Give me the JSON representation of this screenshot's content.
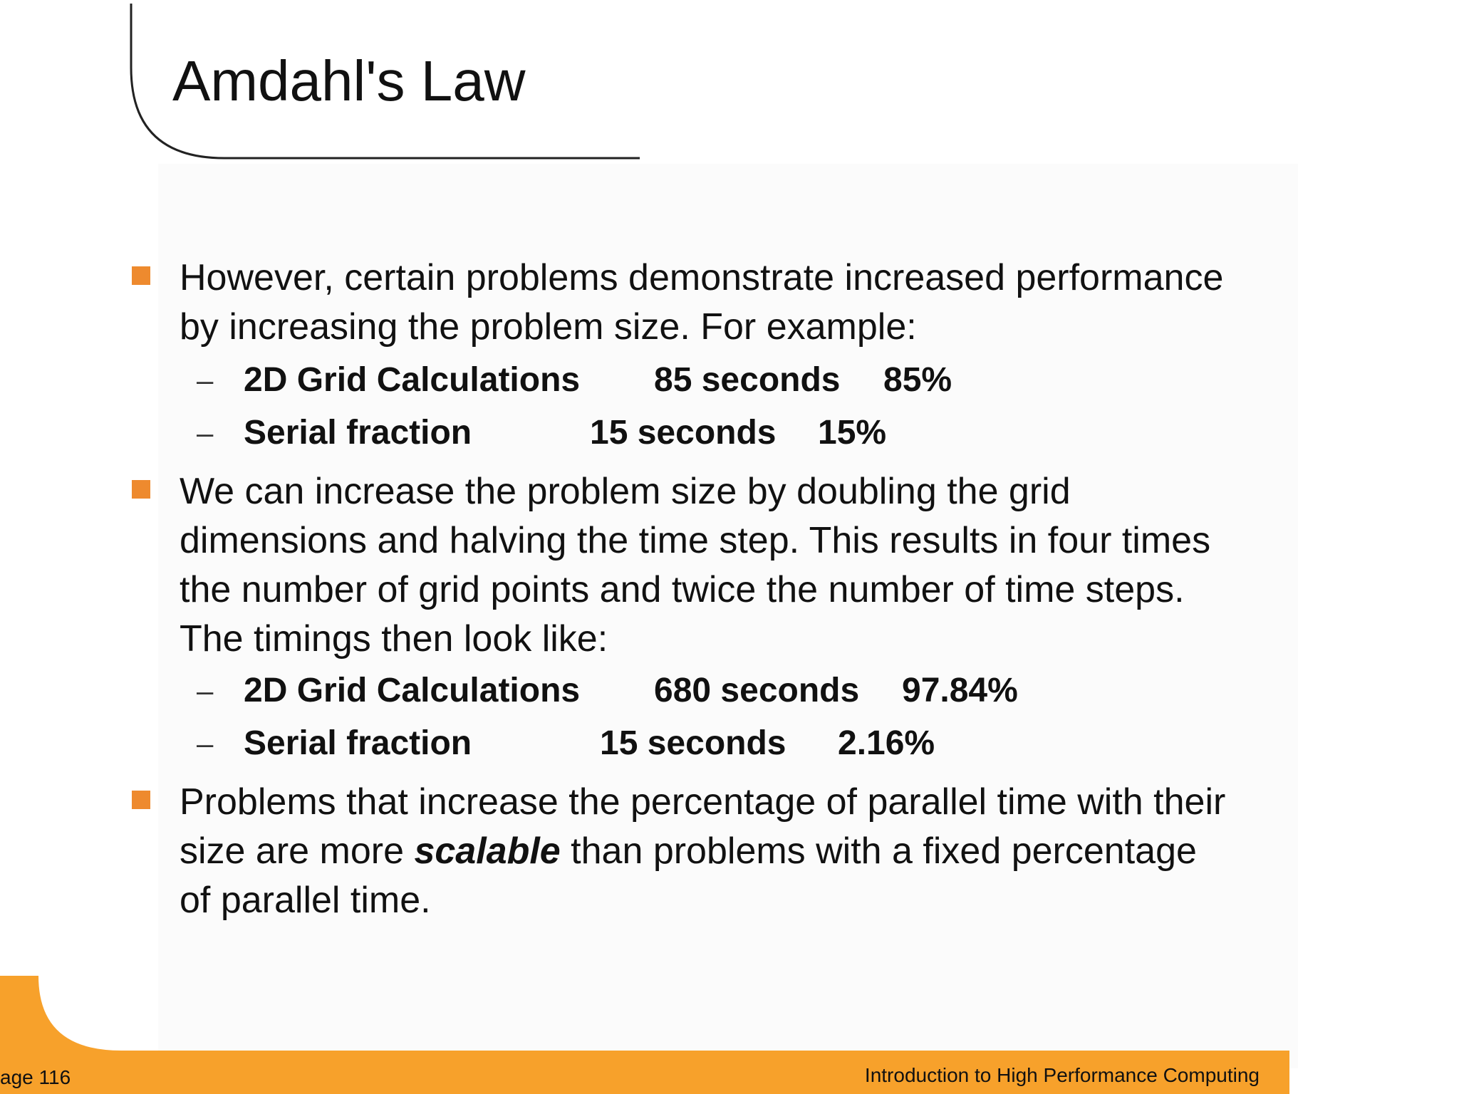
{
  "slide": {
    "title": "Amdahl's Law"
  },
  "bullets": [
    {
      "lines": [
        "However, certain problems demonstrate increased performance",
        "by increasing the problem size. For example:"
      ],
      "subitems": [
        {
          "label": "2D Grid Calculations",
          "time": "85 seconds",
          "percent": "85%"
        },
        {
          "label": "Serial fraction",
          "time": "15 seconds",
          "percent": "15%"
        }
      ]
    },
    {
      "lines": [
        "We can increase the problem size by doubling the grid",
        "dimensions and halving the time step. This results in four times",
        "the number of grid points and twice the number of time steps.",
        "The timings then look like:"
      ],
      "subitems": [
        {
          "label": "2D Grid Calculations",
          "time": "680 seconds",
          "percent": "97.84%"
        },
        {
          "label": "Serial fraction",
          "time": "15 seconds",
          "percent": "2.16%"
        }
      ]
    },
    {
      "line1": "Problems that increase the percentage of parallel time with their",
      "line2_before": "size are more ",
      "line2_emphasis": "scalable",
      "line2_after": " than problems with a fixed percentage",
      "line3": "of parallel time."
    }
  ],
  "footer": {
    "page_label": "age 116",
    "course_title": "Introduction to High Performance Computing"
  },
  "colors": {
    "accent": "#ee8a2e",
    "footer_bar": "#f7a12b"
  }
}
